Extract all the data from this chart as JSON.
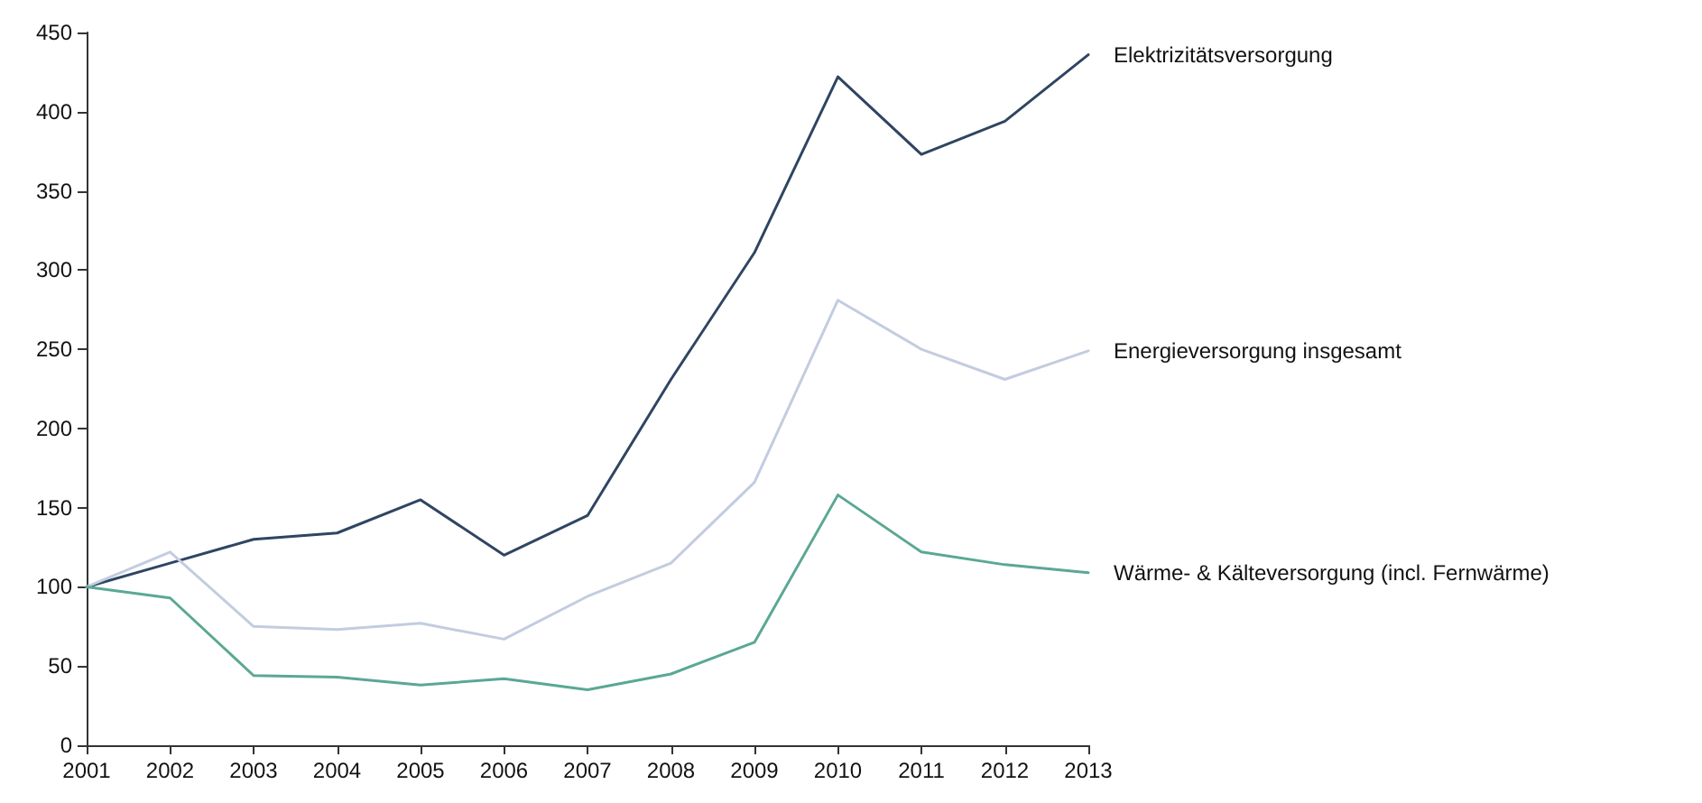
{
  "chart_data": {
    "type": "line",
    "categories": [
      "2001",
      "2002",
      "2003",
      "2004",
      "2005",
      "2006",
      "2007",
      "2008",
      "2009",
      "2010",
      "2011",
      "2012",
      "2013"
    ],
    "series": [
      {
        "name": "Elektrizitätsversorgung",
        "color": "#2f4562",
        "values": [
          100,
          115,
          130,
          134,
          155,
          120,
          145,
          231,
          311,
          422,
          373,
          394,
          436
        ]
      },
      {
        "name": "Energieversorgung insgesamt",
        "color": "#c3cce0",
        "values": [
          100,
          122,
          75,
          73,
          77,
          67,
          94,
          115,
          166,
          281,
          250,
          231,
          249
        ]
      },
      {
        "name": "Wärme- & Kälteversorgung (incl. Fernwärme)",
        "color": "#5aa894",
        "values": [
          100,
          93,
          44,
          43,
          38,
          42,
          35,
          45,
          65,
          158,
          122,
          114,
          109
        ]
      }
    ],
    "ylim": [
      0,
      450
    ],
    "yticks": [
      0,
      50,
      100,
      150,
      200,
      250,
      300,
      350,
      400,
      450
    ],
    "grid": false,
    "legend": false,
    "marker": "none",
    "line_style": "solid"
  }
}
